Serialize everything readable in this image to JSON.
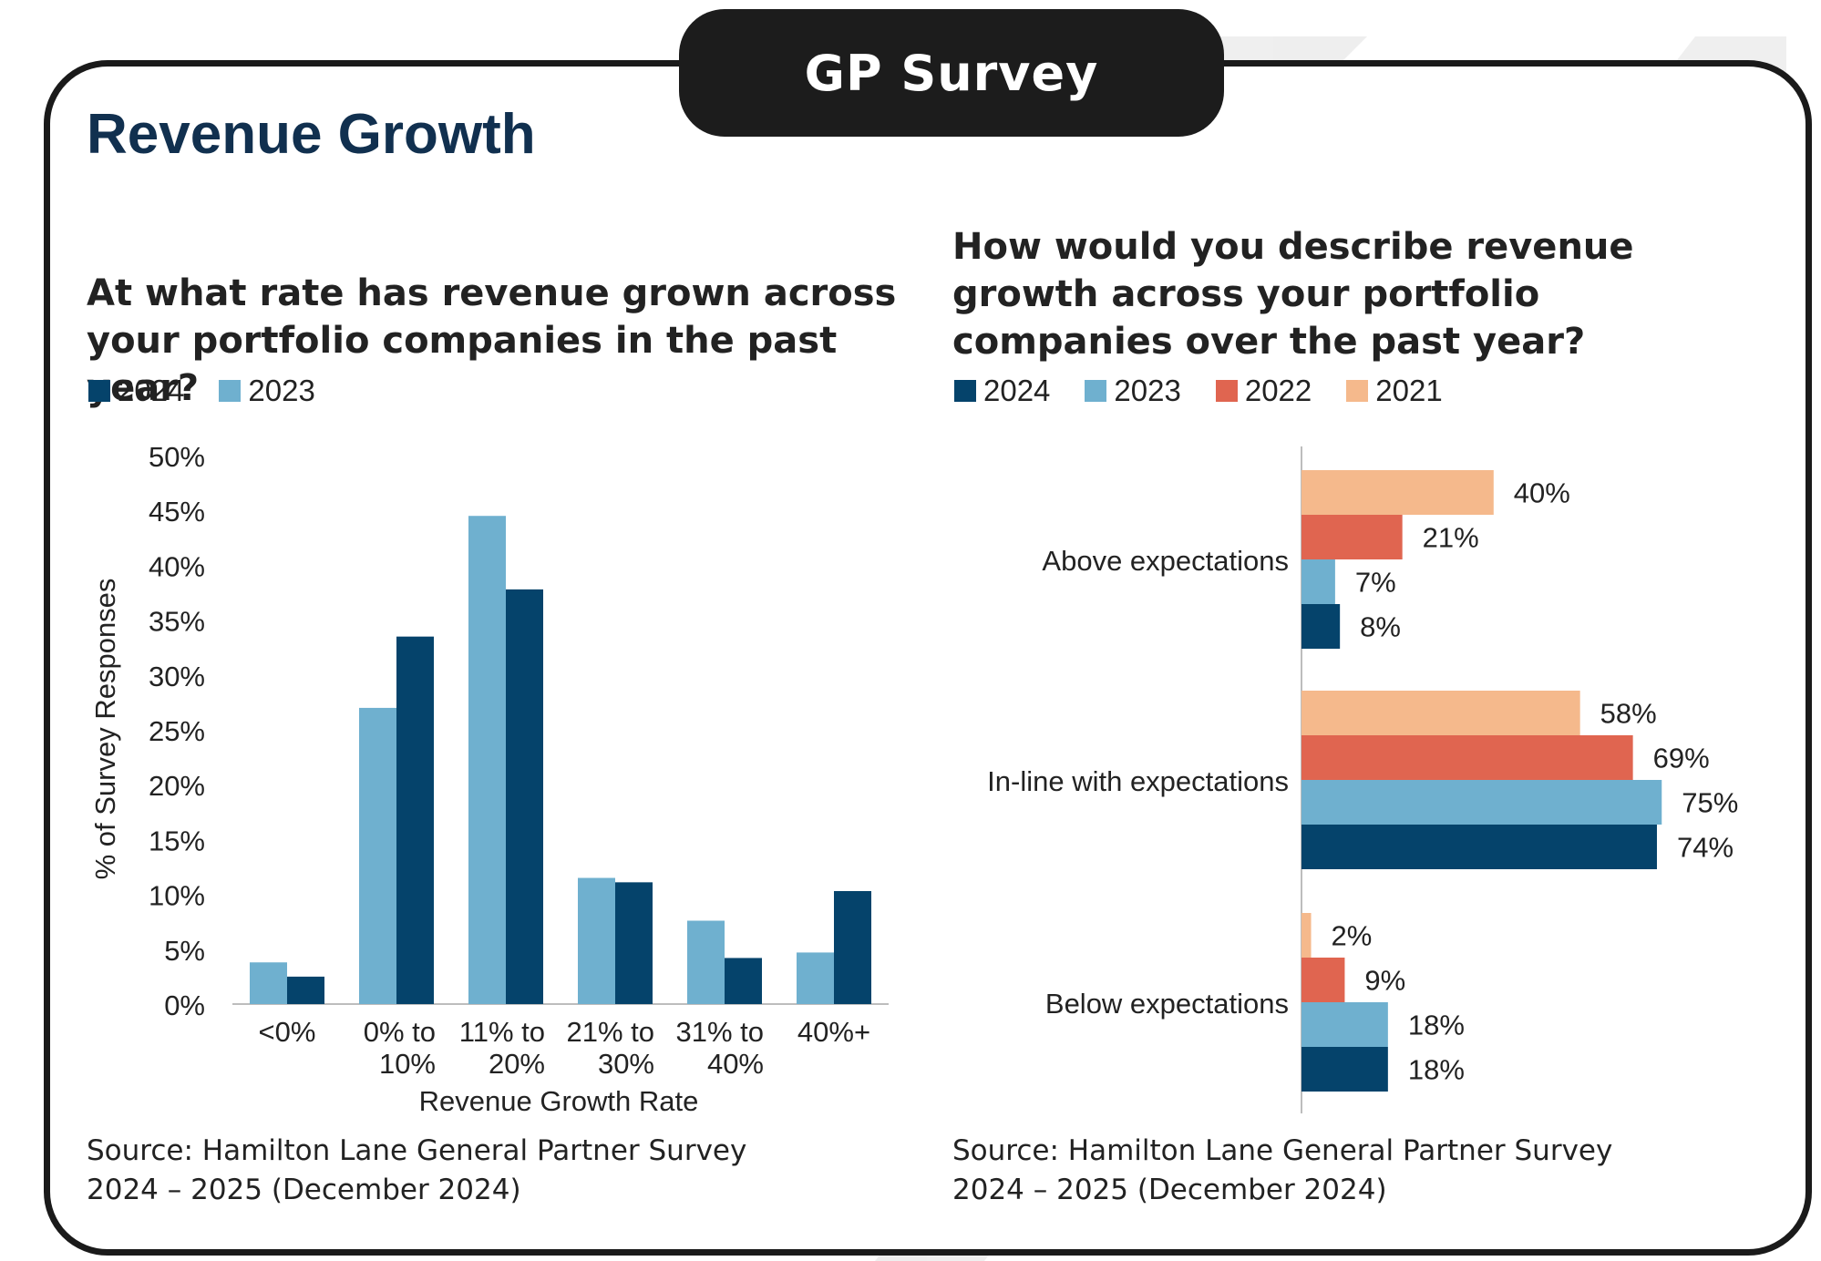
{
  "header": {
    "badge": "GP Survey",
    "title": "Revenue Growth"
  },
  "colors": {
    "y2024": "#05436b",
    "y2023": "#6fb0cf",
    "y2022": "#e06550",
    "y2021": "#f5b98c",
    "ink": "#1a1a1a",
    "title": "#11304f"
  },
  "left": {
    "question": "At what rate has revenue grown across your portfolio companies in the past year?",
    "legend": [
      {
        "label": "2024",
        "color_key": "y2024"
      },
      {
        "label": "2023",
        "color_key": "y2023"
      }
    ],
    "source": "Source: Hamilton Lane General Partner Survey 2024 – 2025 (December 2024)"
  },
  "right": {
    "question": "How would you describe revenue growth across your portfolio companies over the past year?",
    "legend": [
      {
        "label": "2024",
        "color_key": "y2024"
      },
      {
        "label": "2023",
        "color_key": "y2023"
      },
      {
        "label": "2022",
        "color_key": "y2022"
      },
      {
        "label": "2021",
        "color_key": "y2021"
      }
    ],
    "source": "Source: Hamilton Lane General Partner Survey 2024 – 2025 (December 2024)"
  },
  "chart_data": [
    {
      "type": "bar",
      "orientation": "vertical",
      "categories": [
        [
          "<0%"
        ],
        [
          "0% to",
          "10%"
        ],
        [
          "11% to",
          "20%"
        ],
        [
          "21% to",
          "30%"
        ],
        [
          "31% to",
          "40%"
        ],
        [
          "40%+"
        ]
      ],
      "series": [
        {
          "name": "2023",
          "color_key": "y2023",
          "values": [
            3.8,
            27,
            44.5,
            11.5,
            7.6,
            4.7
          ]
        },
        {
          "name": "2024",
          "color_key": "y2024",
          "values": [
            2.5,
            33.5,
            37.8,
            11.1,
            4.2,
            10.3
          ]
        }
      ],
      "xlabel": "Revenue Growth Rate",
      "ylabel": "% of Survey Responses",
      "ylim": [
        0,
        50
      ],
      "yticks": [
        "0%",
        "5%",
        "10%",
        "15%",
        "20%",
        "25%",
        "30%",
        "35%",
        "40%",
        "45%",
        "50%"
      ],
      "grid": false
    },
    {
      "type": "bar",
      "orientation": "horizontal",
      "categories": [
        "Above expectations",
        "In-line with expectations",
        "Below expectations"
      ],
      "series": [
        {
          "name": "2021",
          "color_key": "y2021",
          "values": [
            40,
            58,
            2
          ],
          "labels": [
            "40%",
            "58%",
            "2%"
          ]
        },
        {
          "name": "2022",
          "color_key": "y2022",
          "values": [
            21,
            69,
            9
          ],
          "labels": [
            "21%",
            "69%",
            "9%"
          ]
        },
        {
          "name": "2023",
          "color_key": "y2023",
          "values": [
            7,
            75,
            18
          ],
          "labels": [
            "7%",
            "75%",
            "18%"
          ]
        },
        {
          "name": "2024",
          "color_key": "y2024",
          "values": [
            8,
            74,
            18
          ],
          "labels": [
            "8%",
            "74%",
            "18%"
          ]
        }
      ],
      "xlim": [
        0,
        100
      ],
      "grid": false
    }
  ]
}
